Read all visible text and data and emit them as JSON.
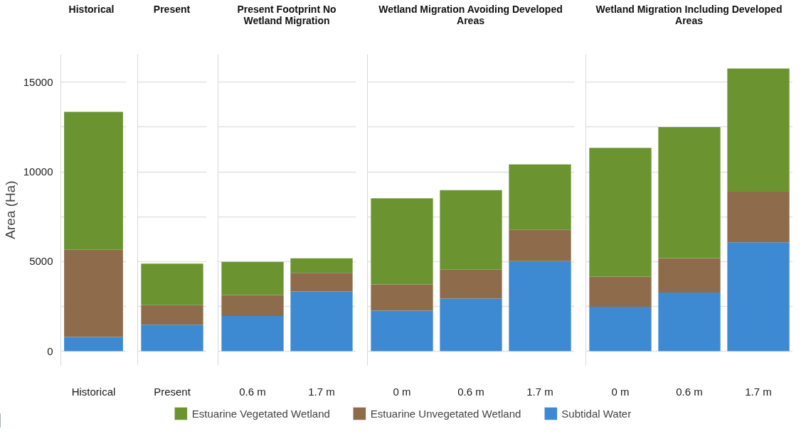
{
  "chart_data": [
    {
      "type": "bar",
      "stacked": true,
      "title": "Historical",
      "ylabel": "Area (Ha)",
      "categories": [
        "Historical"
      ],
      "ylim": [
        -790,
        16560
      ],
      "yticks": [
        0,
        {
          "value": 2500,
          "label": null
        },
        5000,
        {
          "value": 7500,
          "label": null
        },
        10000,
        {
          "value": 12500,
          "label": null
        },
        15000
      ],
      "grid": "y",
      "legend": "bottom",
      "series": [
        {
          "name": "Subtidal Water",
          "color": "#3d8ad3",
          "values": [
            790
          ]
        },
        {
          "name": "Estuarine Unvegetated Wetland",
          "color": "#8e6c4b",
          "values": [
            4870
          ]
        },
        {
          "name": "Estuarine Vegetated Wetland",
          "color": "#6b9431",
          "values": [
            7690
          ]
        }
      ]
    },
    {
      "type": "bar",
      "stacked": true,
      "title": "Present",
      "categories": [
        "Present"
      ],
      "ylim": [
        -790,
        16560
      ],
      "yticks": [
        0,
        {
          "value": 2500,
          "label": null
        },
        5000,
        {
          "value": 7500,
          "label": null
        },
        10000,
        {
          "value": 12500,
          "label": null
        },
        15000
      ],
      "grid": "y",
      "tick_labels": "x",
      "series": [
        {
          "color": "#3d8ad3",
          "values": [
            1480
          ]
        },
        {
          "color": "#8e6c4b",
          "values": [
            1090
          ]
        },
        {
          "color": "#6b9431",
          "values": [
            2310
          ]
        }
      ]
    },
    {
      "type": "bar",
      "stacked": true,
      "title": "Present Footprint No Wetland Migration",
      "categories": [
        "0.6 m",
        "1.7 m"
      ],
      "ylim": [
        -790,
        16560
      ],
      "yticks": [
        0,
        {
          "value": 2500,
          "label": null
        },
        5000,
        {
          "value": 7500,
          "label": null
        },
        10000,
        {
          "value": 12500,
          "label": null
        },
        15000
      ],
      "grid": "y",
      "tick_labels": "x",
      "series": [
        {
          "color": "#3d8ad3",
          "values": [
            1960,
            3330
          ]
        },
        {
          "color": "#8e6c4b",
          "values": [
            1170,
            1040
          ]
        },
        {
          "color": "#6b9431",
          "values": [
            1850,
            810
          ]
        }
      ]
    },
    {
      "type": "bar",
      "stacked": true,
      "title": "Wetland Migration Avoiding Developed Areas",
      "categories": [
        "0 m",
        "0.6 m",
        "1.7 m"
      ],
      "ylim": [
        -790,
        16560
      ],
      "yticks": [
        0,
        {
          "value": 2500,
          "label": null
        },
        5000,
        {
          "value": 7500,
          "label": null
        },
        10000,
        {
          "value": 12500,
          "label": null
        },
        15000
      ],
      "grid": "y",
      "tick_labels": "x",
      "series": [
        {
          "color": "#3d8ad3",
          "values": [
            2260,
            2930,
            5020
          ]
        },
        {
          "color": "#8e6c4b",
          "values": [
            1470,
            1620,
            1770
          ]
        },
        {
          "color": "#6b9431",
          "values": [
            4800,
            4430,
            3630
          ]
        }
      ]
    },
    {
      "type": "bar",
      "stacked": true,
      "title": "Wetland Migration Including Developed Areas",
      "categories": [
        "0 m",
        "0.6 m",
        "1.7 m"
      ],
      "ylim": [
        -790,
        16560
      ],
      "yticks": [
        0,
        {
          "value": 2500,
          "label": null
        },
        5000,
        {
          "value": 7500,
          "label": null
        },
        10000,
        {
          "value": 12500,
          "label": null
        },
        15000
      ],
      "grid": "y",
      "tick_labels": "x",
      "series": [
        {
          "color": "#3d8ad3",
          "values": [
            2480,
            3270,
            6070
          ]
        },
        {
          "color": "#8e6c4b",
          "values": [
            1680,
            1920,
            2830
          ]
        },
        {
          "color": "#6b9431",
          "values": [
            7180,
            7310,
            6870
          ]
        }
      ]
    }
  ]
}
